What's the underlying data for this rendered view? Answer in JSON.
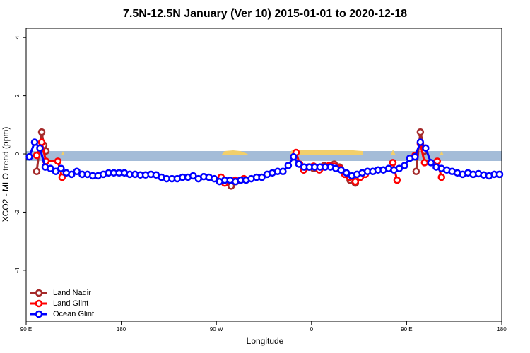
{
  "chart_data": {
    "type": "line",
    "title": "7.5N-12.5N January (Ver 10)   2015-01-01 to 2020-12-18",
    "x_label": "Longitude",
    "y_label": "XCO2 - MLO trend (ppm)",
    "xlim": [
      90,
      540
    ],
    "ylim": [
      -5.75,
      4.32
    ],
    "xticks": [
      {
        "value": 90,
        "label": "90 E"
      },
      180,
      {
        "value": 270,
        "label": "90 W"
      },
      {
        "value": 360,
        "label": "0"
      },
      {
        "value": 450,
        "label": "90 E"
      },
      {
        "value": 540,
        "label": "180"
      }
    ],
    "yticks": [
      -4,
      -2,
      0,
      2,
      4
    ],
    "legend": "bottom-left",
    "series": [
      {
        "name": "Land Nadir",
        "color": "#a52a2a",
        "x": [
          100,
          104.7,
          106.7,
          108.7,
          null,
          279,
          284,
          288.5,
          null,
          352.6,
          362,
          372,
          381.5,
          386.5,
          396.5,
          401.5,
          null,
          459,
          463,
          467
        ],
        "values": [
          -0.6,
          0.75,
          0.3,
          0.1,
          null,
          -0.95,
          -1.1,
          -0.95,
          null,
          -0.55,
          -0.5,
          -0.4,
          -0.35,
          -0.45,
          -0.9,
          -1.0,
          null,
          -0.6,
          0.75,
          0.1
        ]
      },
      {
        "name": "Land Glint",
        "color": "#ff0000",
        "x": [
          100,
          104.7,
          108.7,
          120,
          124,
          null,
          274.5,
          278,
          288,
          296,
          null,
          345.4,
          348.8,
          352.6,
          357.4,
          362,
          367.4,
          372,
          376.8,
          381.5,
          386.8,
          391.5,
          396.2,
          401.5,
          406.2,
          410.9,
          null,
          437,
          441,
          null,
          458,
          463,
          467,
          479,
          483
        ],
        "values": [
          -0.05,
          0.4,
          -0.25,
          -0.25,
          -0.8,
          null,
          -0.8,
          -1.0,
          -0.9,
          -0.85,
          null,
          0.05,
          -0.35,
          -0.55,
          -0.45,
          -0.42,
          -0.55,
          -0.45,
          -0.4,
          -0.42,
          -0.5,
          -0.7,
          -0.8,
          -0.95,
          -0.8,
          -0.7,
          null,
          -0.3,
          -0.9,
          null,
          -0.05,
          0.35,
          -0.3,
          -0.25,
          -0.8
        ]
      },
      {
        "name": "Ocean Glint",
        "color": "#0000ff",
        "x": [
          93,
          98,
          103,
          108,
          113,
          118,
          123,
          128,
          133,
          138,
          143,
          148,
          153,
          158,
          163,
          168,
          173,
          178,
          183,
          188,
          193,
          198,
          203,
          208,
          213,
          218,
          223,
          228,
          233,
          238,
          243,
          248,
          253,
          258,
          263,
          268,
          273,
          278,
          283,
          288,
          293,
          298,
          303,
          308,
          313,
          318,
          323,
          328,
          333,
          338,
          343,
          348,
          353,
          358,
          363,
          368,
          373,
          378,
          383,
          388,
          393,
          398,
          403,
          408,
          413,
          418,
          423,
          428,
          433,
          438,
          443,
          448,
          453,
          458,
          463,
          468,
          473,
          478,
          483,
          488,
          493,
          498,
          503,
          508,
          513,
          518,
          523,
          528,
          533,
          538
        ],
        "values": [
          -0.1,
          0.4,
          0.2,
          -0.45,
          -0.5,
          -0.6,
          -0.5,
          -0.65,
          -0.7,
          -0.6,
          -0.7,
          -0.7,
          -0.75,
          -0.75,
          -0.7,
          -0.65,
          -0.65,
          -0.65,
          -0.65,
          -0.7,
          -0.7,
          -0.72,
          -0.72,
          -0.7,
          -0.72,
          -0.8,
          -0.85,
          -0.85,
          -0.85,
          -0.8,
          -0.8,
          -0.75,
          -0.85,
          -0.78,
          -0.8,
          -0.85,
          -0.95,
          -0.9,
          -0.9,
          -0.95,
          -0.9,
          -0.9,
          -0.85,
          -0.8,
          -0.8,
          -0.7,
          -0.65,
          -0.6,
          -0.6,
          -0.4,
          -0.1,
          -0.35,
          -0.45,
          -0.45,
          -0.45,
          -0.45,
          -0.45,
          -0.45,
          -0.5,
          -0.55,
          -0.65,
          -0.75,
          -0.7,
          -0.65,
          -0.6,
          -0.6,
          -0.55,
          -0.55,
          -0.5,
          -0.55,
          -0.5,
          -0.4,
          -0.15,
          -0.1,
          0.4,
          0.2,
          -0.3,
          -0.45,
          -0.5,
          -0.55,
          -0.6,
          -0.65,
          -0.7,
          -0.65,
          -0.7,
          -0.68,
          -0.72,
          -0.75,
          -0.7,
          -0.7
        ]
      }
    ]
  }
}
